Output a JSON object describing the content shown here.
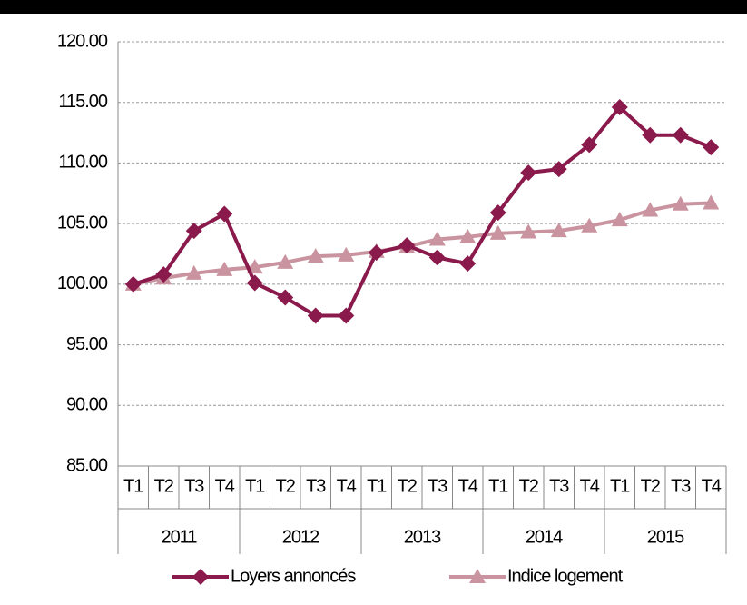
{
  "chart_data": {
    "type": "line",
    "categories": [
      "T1",
      "T2",
      "T3",
      "T4",
      "T1",
      "T2",
      "T3",
      "T4",
      "T1",
      "T2",
      "T3",
      "T4",
      "T1",
      "T2",
      "T3",
      "T4",
      "T1",
      "T2",
      "T3",
      "T4"
    ],
    "group_labels": [
      "2011",
      "2012",
      "2013",
      "2014",
      "2015"
    ],
    "series": [
      {
        "name": "Loyers annoncés",
        "color": "#8b1a4c",
        "marker": "diamond",
        "values": [
          100.0,
          100.8,
          104.4,
          105.8,
          100.1,
          98.9,
          97.4,
          97.4,
          102.6,
          103.2,
          102.2,
          101.7,
          105.9,
          109.2,
          109.5,
          111.5,
          114.6,
          112.3,
          112.3,
          111.3
        ]
      },
      {
        "name": "Indice logement",
        "color": "#c9949f",
        "marker": "triangle",
        "values": [
          100.0,
          100.5,
          100.9,
          101.2,
          101.4,
          101.8,
          102.3,
          102.4,
          102.7,
          103.1,
          103.7,
          103.9,
          104.2,
          104.3,
          104.4,
          104.8,
          105.3,
          106.1,
          106.6,
          106.7
        ]
      }
    ],
    "ylim": [
      85,
      120
    ],
    "yticks": [
      {
        "value": 85,
        "label": "85.00"
      },
      {
        "value": 90,
        "label": "90.00"
      },
      {
        "value": 95,
        "label": "95.00"
      },
      {
        "value": 100,
        "label": "100.00"
      },
      {
        "value": 105,
        "label": "105.00"
      },
      {
        "value": 110,
        "label": "110.00"
      },
      {
        "value": 115,
        "label": "115.00"
      },
      {
        "value": 120,
        "label": "120.00"
      }
    ],
    "grid": true,
    "legend": "bottom"
  }
}
